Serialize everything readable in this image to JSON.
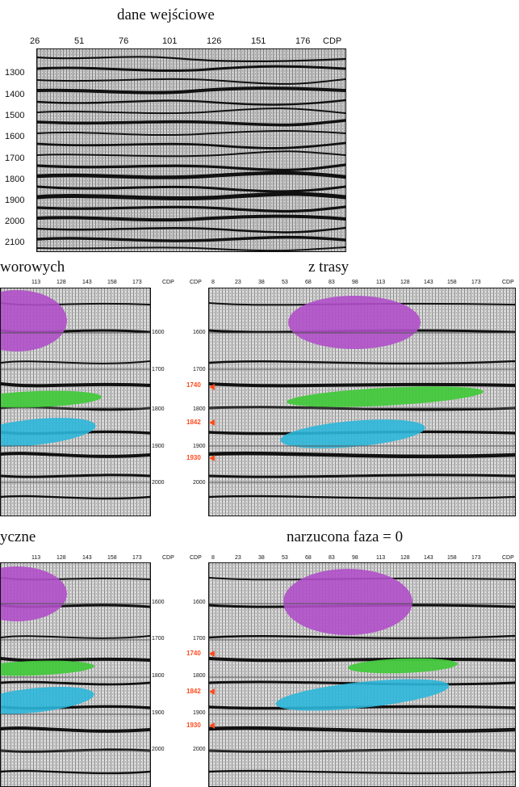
{
  "main_panel": {
    "title": "dane wejściowe",
    "x_ticks": [
      "26",
      "51",
      "76",
      "101",
      "126",
      "151",
      "176"
    ],
    "x_unit": "CDP",
    "y_ticks": [
      "1300",
      "1400",
      "1500",
      "1600",
      "1700",
      "1800",
      "1900",
      "2000",
      "2100"
    ]
  },
  "panels": [
    {
      "id": "top-left",
      "title": "worowych",
      "x_ticks": [
        "113",
        "128",
        "143",
        "158",
        "173"
      ],
      "x_unit": "CDP",
      "y_ticks": [
        "1600",
        "1700",
        "1800",
        "1900",
        "2000"
      ],
      "red_ticks": []
    },
    {
      "id": "top-right",
      "title": "z trasy",
      "x_ticks": [
        "CDP",
        "8",
        "23",
        "38",
        "53",
        "68",
        "83",
        "98",
        "113",
        "128",
        "143",
        "158",
        "173"
      ],
      "x_unit": "CDP",
      "y_ticks": [
        "1600",
        "1700",
        "1800",
        "1900",
        "2000"
      ],
      "red_ticks": [
        "1740",
        "1842",
        "1930"
      ]
    },
    {
      "id": "bottom-left",
      "title": "yczne",
      "x_ticks": [
        "113",
        "128",
        "143",
        "158",
        "173"
      ],
      "x_unit": "CDP",
      "y_ticks": [
        "1600",
        "1700",
        "1800",
        "1900",
        "2000"
      ],
      "red_ticks": []
    },
    {
      "id": "bottom-right",
      "title": "narzucona faza = 0",
      "x_ticks": [
        "CDP",
        "8",
        "23",
        "38",
        "53",
        "68",
        "83",
        "98",
        "113",
        "128",
        "143",
        "158",
        "173"
      ],
      "x_unit": "CDP",
      "y_ticks": [
        "1600",
        "1700",
        "1800",
        "1900",
        "2000"
      ],
      "red_ticks": [
        "1740",
        "1842",
        "1930"
      ]
    }
  ],
  "colors": {
    "purple": "#b04fc9",
    "green": "#43c83c",
    "cyan": "#2cb6d9",
    "red": "#ff4a1c"
  }
}
